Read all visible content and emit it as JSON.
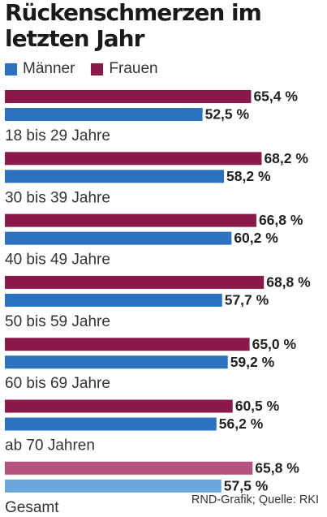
{
  "chart_data": {
    "type": "bar",
    "orientation": "horizontal",
    "title": "Rückenschmerzen im letzten Jahr",
    "categories": [
      "18 bis 29 Jahre",
      "30 bis 39 Jahre",
      "40 bis 49 Jahre",
      "50 bis 59 Jahre",
      "60 bis 69 Jahre",
      "ab 70 Jahren",
      "Gesamt"
    ],
    "series": [
      {
        "name": "Frauen",
        "color": "#8b1a4a",
        "highlight_color": "#b5537e",
        "values": [
          65.4,
          68.2,
          66.8,
          68.8,
          65.0,
          60.5,
          65.8
        ],
        "labels": [
          "65,4 %",
          "68,2 %",
          "66,8 %",
          "68,8 %",
          "65,0 %",
          "60,5 %",
          "65,8 %"
        ]
      },
      {
        "name": "Männer",
        "color": "#2b72c0",
        "highlight_color": "#6aa8dc",
        "values": [
          52.5,
          58.2,
          60.2,
          57.7,
          59.2,
          56.2,
          57.5
        ],
        "labels": [
          "52,5 %",
          "58,2 %",
          "60,2 %",
          "57,7 %",
          "59,2 %",
          "56,2 %",
          "57,5 %"
        ]
      }
    ],
    "legend": {
      "position": "top-left",
      "order": [
        "Männer",
        "Frauen"
      ]
    },
    "highlighted_category": "Gesamt",
    "xlabel": "",
    "ylabel": "",
    "grid": false
  },
  "source": "RND-Grafik; Quelle: RKI"
}
